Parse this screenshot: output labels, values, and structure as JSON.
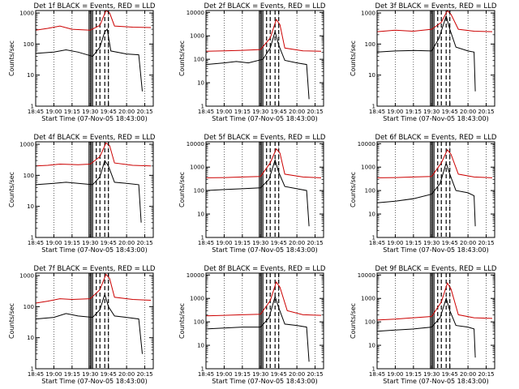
{
  "x_ticks": [
    "18:45",
    "19:00",
    "19:15",
    "19:30",
    "19:45",
    "20:00",
    "20:15"
  ],
  "xlabel": "Start Time (07-Nov-05 18:43:00)",
  "ylabel": "Counts/sec",
  "colors": {
    "events": "#000000",
    "lld": "#cc0000",
    "background": "#ffffff"
  },
  "chart_data": [
    {
      "type": "line",
      "title": "Det 1f BLACK = Events, RED = LLD",
      "y_scale": "log",
      "y_ticks": [
        "1",
        "10",
        "100",
        "1000"
      ],
      "ylim": [
        1,
        1200
      ],
      "series": [
        {
          "name": "Events",
          "color": "#000000",
          "points": [
            [
              "18:45",
              50
            ],
            [
              "19:00",
              55
            ],
            [
              "19:10",
              65
            ],
            [
              "19:20",
              55
            ],
            [
              "19:32",
              40
            ],
            [
              "19:38",
              80
            ],
            [
              "19:42",
              250
            ],
            [
              "19:44",
              300
            ],
            [
              "19:47",
              60
            ],
            [
              "20:00",
              48
            ],
            [
              "20:10",
              45
            ],
            [
              "20:13",
              3
            ]
          ]
        },
        {
          "name": "LLD",
          "color": "#cc0000",
          "points": [
            [
              "18:45",
              280
            ],
            [
              "18:55",
              320
            ],
            [
              "19:05",
              380
            ],
            [
              "19:15",
              300
            ],
            [
              "19:30",
              280
            ],
            [
              "19:38",
              400
            ],
            [
              "19:43",
              1200
            ],
            [
              "19:46",
              1000
            ],
            [
              "19:50",
              380
            ],
            [
              "20:05",
              350
            ],
            [
              "20:20",
              340
            ]
          ]
        }
      ]
    },
    {
      "type": "line",
      "title": "Det 2f BLACK = Events, RED = LLD",
      "y_scale": "log",
      "y_ticks": [
        "1",
        "10",
        "100",
        "1000",
        "10000"
      ],
      "ylim": [
        1,
        12000
      ],
      "series": [
        {
          "name": "Events",
          "color": "#000000",
          "points": [
            [
              "18:45",
              60
            ],
            [
              "19:00",
              70
            ],
            [
              "19:10",
              80
            ],
            [
              "19:20",
              70
            ],
            [
              "19:32",
              100
            ],
            [
              "19:38",
              300
            ],
            [
              "19:42",
              1500
            ],
            [
              "19:45",
              400
            ],
            [
              "19:50",
              90
            ],
            [
              "20:00",
              70
            ],
            [
              "20:08",
              60
            ],
            [
              "20:10",
              2
            ]
          ]
        },
        {
          "name": "LLD",
          "color": "#cc0000",
          "points": [
            [
              "18:45",
              220
            ],
            [
              "19:00",
              230
            ],
            [
              "19:15",
              240
            ],
            [
              "19:30",
              260
            ],
            [
              "19:38",
              800
            ],
            [
              "19:43",
              5000
            ],
            [
              "19:46",
              3000
            ],
            [
              "19:50",
              300
            ],
            [
              "20:05",
              230
            ],
            [
              "20:20",
              220
            ]
          ]
        }
      ]
    },
    {
      "type": "line",
      "title": "Det 3f BLACK = Events, RED = LLD",
      "y_scale": "log",
      "y_ticks": [
        "1",
        "10",
        "100",
        "1000"
      ],
      "ylim": [
        1,
        1200
      ],
      "series": [
        {
          "name": "Events",
          "color": "#000000",
          "points": [
            [
              "18:45",
              55
            ],
            [
              "19:00",
              60
            ],
            [
              "19:15",
              62
            ],
            [
              "19:30",
              60
            ],
            [
              "19:36",
              150
            ],
            [
              "19:42",
              800
            ],
            [
              "19:45",
              300
            ],
            [
              "19:50",
              80
            ],
            [
              "20:00",
              60
            ],
            [
              "20:05",
              55
            ],
            [
              "20:06",
              3
            ]
          ]
        },
        {
          "name": "LLD",
          "color": "#cc0000",
          "points": [
            [
              "18:45",
              250
            ],
            [
              "19:00",
              280
            ],
            [
              "19:15",
              260
            ],
            [
              "19:30",
              300
            ],
            [
              "19:38",
              500
            ],
            [
              "19:43",
              1200
            ],
            [
              "19:46",
              900
            ],
            [
              "19:52",
              300
            ],
            [
              "20:05",
              260
            ],
            [
              "20:20",
              250
            ]
          ]
        }
      ]
    },
    {
      "type": "line",
      "title": "Det 4f BLACK = Events, RED = LLD",
      "y_scale": "log",
      "y_ticks": [
        "1",
        "10",
        "100",
        "1000"
      ],
      "ylim": [
        1,
        1200
      ],
      "series": [
        {
          "name": "Events",
          "color": "#000000",
          "points": [
            [
              "18:45",
              50
            ],
            [
              "19:00",
              55
            ],
            [
              "19:10",
              60
            ],
            [
              "19:20",
              55
            ],
            [
              "19:32",
              50
            ],
            [
              "19:38",
              90
            ],
            [
              "19:42",
              300
            ],
            [
              "19:45",
              200
            ],
            [
              "19:50",
              60
            ],
            [
              "20:00",
              55
            ],
            [
              "20:10",
              50
            ],
            [
              "20:12",
              3
            ]
          ]
        },
        {
          "name": "LLD",
          "color": "#cc0000",
          "points": [
            [
              "18:45",
              200
            ],
            [
              "18:55",
              210
            ],
            [
              "19:05",
              230
            ],
            [
              "19:20",
              220
            ],
            [
              "19:30",
              230
            ],
            [
              "19:38",
              400
            ],
            [
              "19:43",
              1100
            ],
            [
              "19:46",
              900
            ],
            [
              "19:50",
              250
            ],
            [
              "20:05",
              210
            ],
            [
              "20:20",
              200
            ]
          ]
        }
      ]
    },
    {
      "type": "line",
      "title": "Det 5f BLACK = Events, RED = LLD",
      "y_scale": "log",
      "y_ticks": [
        "1",
        "10",
        "100",
        "1000",
        "10000"
      ],
      "ylim": [
        1,
        12000
      ],
      "series": [
        {
          "name": "Events",
          "color": "#000000",
          "points": [
            [
              "18:45",
              100
            ],
            [
              "19:00",
              110
            ],
            [
              "19:15",
              120
            ],
            [
              "19:30",
              130
            ],
            [
              "19:37",
              300
            ],
            [
              "19:42",
              2000
            ],
            [
              "19:45",
              600
            ],
            [
              "19:50",
              150
            ],
            [
              "20:00",
              120
            ],
            [
              "20:08",
              100
            ],
            [
              "20:10",
              3
            ]
          ]
        },
        {
          "name": "LLD",
          "color": "#cc0000",
          "points": [
            [
              "18:45",
              350
            ],
            [
              "19:00",
              360
            ],
            [
              "19:15",
              380
            ],
            [
              "19:30",
              400
            ],
            [
              "19:38",
              1500
            ],
            [
              "19:43",
              6000
            ],
            [
              "19:46",
              4000
            ],
            [
              "19:50",
              500
            ],
            [
              "20:05",
              380
            ],
            [
              "20:20",
              350
            ]
          ]
        }
      ]
    },
    {
      "type": "line",
      "title": "Det 6f BLACK = Events, RED = LLD",
      "y_scale": "log",
      "y_ticks": [
        "1",
        "10",
        "100",
        "1000",
        "10000"
      ],
      "ylim": [
        1,
        12000
      ],
      "series": [
        {
          "name": "Events",
          "color": "#000000",
          "points": [
            [
              "18:45",
              30
            ],
            [
              "19:00",
              35
            ],
            [
              "19:15",
              45
            ],
            [
              "19:30",
              70
            ],
            [
              "19:37",
              200
            ],
            [
              "19:42",
              1500
            ],
            [
              "19:45",
              500
            ],
            [
              "19:50",
              100
            ],
            [
              "20:00",
              80
            ],
            [
              "20:05",
              60
            ],
            [
              "20:06",
              3
            ]
          ]
        },
        {
          "name": "LLD",
          "color": "#cc0000",
          "points": [
            [
              "18:45",
              350
            ],
            [
              "19:00",
              360
            ],
            [
              "19:15",
              380
            ],
            [
              "19:30",
              400
            ],
            [
              "19:38",
              1500
            ],
            [
              "19:43",
              5500
            ],
            [
              "19:46",
              3500
            ],
            [
              "19:52",
              500
            ],
            [
              "20:05",
              380
            ],
            [
              "20:20",
              350
            ]
          ]
        }
      ]
    },
    {
      "type": "line",
      "title": "Det 7f BLACK = Events, RED = LLD",
      "y_scale": "log",
      "y_ticks": [
        "1",
        "10",
        "100",
        "1000"
      ],
      "ylim": [
        1,
        1200
      ],
      "series": [
        {
          "name": "Events",
          "color": "#000000",
          "points": [
            [
              "18:45",
              40
            ],
            [
              "19:00",
              45
            ],
            [
              "19:10",
              60
            ],
            [
              "19:20",
              50
            ],
            [
              "19:32",
              45
            ],
            [
              "19:38",
              80
            ],
            [
              "19:42",
              250
            ],
            [
              "19:45",
              100
            ],
            [
              "19:50",
              50
            ],
            [
              "20:00",
              45
            ],
            [
              "20:10",
              40
            ],
            [
              "20:13",
              3
            ]
          ]
        },
        {
          "name": "LLD",
          "color": "#cc0000",
          "points": [
            [
              "18:45",
              130
            ],
            [
              "18:55",
              150
            ],
            [
              "19:05",
              180
            ],
            [
              "19:15",
              170
            ],
            [
              "19:30",
              180
            ],
            [
              "19:38",
              350
            ],
            [
              "19:43",
              1100
            ],
            [
              "19:46",
              800
            ],
            [
              "19:50",
              200
            ],
            [
              "20:05",
              170
            ],
            [
              "20:20",
              160
            ]
          ]
        }
      ]
    },
    {
      "type": "line",
      "title": "Det 8f BLACK = Events, RED = LLD",
      "y_scale": "log",
      "y_ticks": [
        "1",
        "10",
        "100",
        "1000",
        "10000"
      ],
      "ylim": [
        1,
        12000
      ],
      "series": [
        {
          "name": "Events",
          "color": "#000000",
          "points": [
            [
              "18:45",
              50
            ],
            [
              "19:00",
              55
            ],
            [
              "19:15",
              60
            ],
            [
              "19:30",
              60
            ],
            [
              "19:37",
              150
            ],
            [
              "19:42",
              1200
            ],
            [
              "19:45",
              400
            ],
            [
              "19:50",
              80
            ],
            [
              "20:00",
              70
            ],
            [
              "20:08",
              60
            ],
            [
              "20:10",
              2
            ]
          ]
        },
        {
          "name": "LLD",
          "color": "#cc0000",
          "points": [
            [
              "18:45",
              180
            ],
            [
              "19:00",
              190
            ],
            [
              "19:15",
              200
            ],
            [
              "19:30",
              210
            ],
            [
              "19:38",
              800
            ],
            [
              "19:43",
              5000
            ],
            [
              "19:46",
              3000
            ],
            [
              "19:52",
              300
            ],
            [
              "20:05",
              200
            ],
            [
              "20:20",
              190
            ]
          ]
        }
      ]
    },
    {
      "type": "line",
      "title": "Det 9f BLACK = Events, RED = LLD",
      "y_scale": "log",
      "y_ticks": [
        "1",
        "10",
        "100",
        "1000",
        "10000"
      ],
      "ylim": [
        1,
        12000
      ],
      "series": [
        {
          "name": "Events",
          "color": "#000000",
          "points": [
            [
              "18:45",
              40
            ],
            [
              "19:00",
              45
            ],
            [
              "19:15",
              50
            ],
            [
              "19:30",
              60
            ],
            [
              "19:37",
              150
            ],
            [
              "19:42",
              1000
            ],
            [
              "19:45",
              300
            ],
            [
              "19:50",
              70
            ],
            [
              "20:00",
              60
            ],
            [
              "20:05",
              50
            ],
            [
              "20:06",
              3
            ]
          ]
        },
        {
          "name": "LLD",
          "color": "#cc0000",
          "points": [
            [
              "18:45",
              120
            ],
            [
              "19:00",
              130
            ],
            [
              "19:15",
              150
            ],
            [
              "19:30",
              170
            ],
            [
              "19:38",
              700
            ],
            [
              "19:43",
              4500
            ],
            [
              "19:46",
              2500
            ],
            [
              "19:52",
              200
            ],
            [
              "20:05",
              150
            ],
            [
              "20:20",
              140
            ]
          ]
        }
      ]
    }
  ]
}
